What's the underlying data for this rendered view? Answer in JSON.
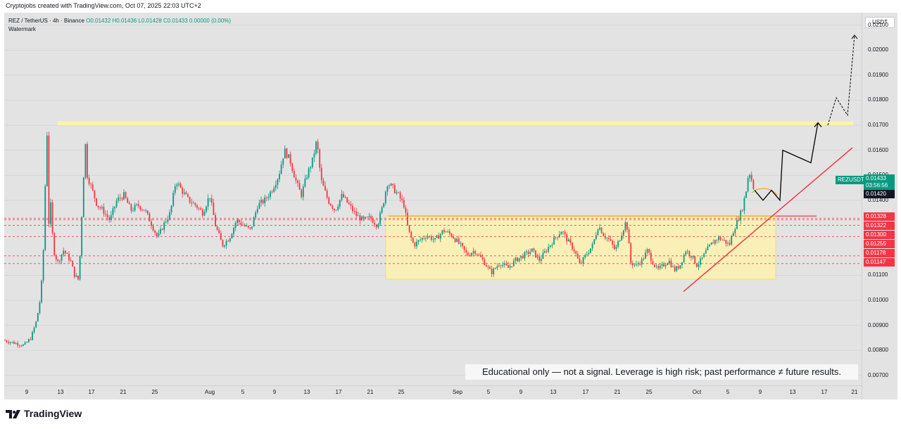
{
  "header": {
    "credit": "Cryptojobs created with TradingView.com, Oct 07, 2025 22:03 UTC+2"
  },
  "legend": {
    "symbol": "REZ / TetherUS · 4h · Binance",
    "ohlc": "O0.01432 H0.01436 L0.01428 C0.01433 0.00000 (0.00%)",
    "watermark": "Watermark"
  },
  "currency_button": "USDT",
  "price_axis_ticks": [
    "0.02100",
    "0.02000",
    "0.01900",
    "0.01800",
    "0.01700",
    "0.01600",
    "0.01500",
    "0.01400",
    "0.01100",
    "0.01000",
    "0.00900",
    "0.00800",
    "0.00700"
  ],
  "price_tags": {
    "symbol": "REZUSDT",
    "last_price": "0.01433",
    "countdown": "03:56:56",
    "level_1420": "0.01420",
    "levels_red": [
      "0.01328",
      "0.01322",
      "0.01300",
      "0.01255",
      "0.01178",
      "0.01147"
    ]
  },
  "time_axis": [
    "9",
    "13",
    "17",
    "21",
    "25",
    "Aug",
    "5",
    "9",
    "13",
    "17",
    "21",
    "25",
    "Sep",
    "5",
    "9",
    "13",
    "17",
    "21",
    "25",
    "Oct",
    "5",
    "9",
    "13",
    "17",
    "21"
  ],
  "disclaimer": "Educational only — not a signal. Leverage is high risk; past performance ≠ future results.",
  "footer": {
    "brand": "TradingView"
  },
  "colors": {
    "up": "#089981",
    "down": "#f23645",
    "resistance_zone": "#fff59d",
    "range_box": "#fff3b0",
    "trendline": "#f23645",
    "range_top_line": "#ff9800",
    "projection": "#000000"
  },
  "chart_data": {
    "type": "candlestick",
    "symbol": "REZ / TetherUS",
    "timeframe": "4h",
    "exchange": "Binance",
    "ylim": [
      0.0066,
      0.0215
    ],
    "y_ticks": [
      0.021,
      0.02,
      0.019,
      0.018,
      0.017,
      0.016,
      0.015,
      0.014,
      0.011,
      0.01,
      0.009,
      0.008,
      0.007
    ],
    "x_labels": [
      "9",
      "13",
      "17",
      "21",
      "25",
      "Aug",
      "5",
      "9",
      "13",
      "17",
      "21",
      "25",
      "Sep",
      "5",
      "9",
      "13",
      "17",
      "21",
      "25",
      "Oct",
      "5",
      "9",
      "13",
      "17",
      "21"
    ],
    "price_path": [
      [
        0,
        0.0084
      ],
      [
        14,
        0.0083
      ],
      [
        28,
        0.0082
      ],
      [
        38,
        0.0085
      ],
      [
        46,
        0.0092
      ],
      [
        52,
        0.0102
      ],
      [
        56,
        0.0122
      ],
      [
        58,
        0.0142
      ],
      [
        60,
        0.018
      ],
      [
        63,
        0.013
      ],
      [
        66,
        0.0138
      ],
      [
        70,
        0.012
      ],
      [
        76,
        0.0115
      ],
      [
        84,
        0.012
      ],
      [
        94,
        0.0116
      ],
      [
        100,
        0.011
      ],
      [
        106,
        0.0108
      ],
      [
        112,
        0.0145
      ],
      [
        115,
        0.0164
      ],
      [
        118,
        0.015
      ],
      [
        124,
        0.0145
      ],
      [
        132,
        0.0138
      ],
      [
        140,
        0.0136
      ],
      [
        150,
        0.0132
      ],
      [
        160,
        0.014
      ],
      [
        170,
        0.0142
      ],
      [
        180,
        0.0136
      ],
      [
        190,
        0.0138
      ],
      [
        200,
        0.0136
      ],
      [
        210,
        0.013
      ],
      [
        218,
        0.0125
      ],
      [
        226,
        0.013
      ],
      [
        236,
        0.0135
      ],
      [
        244,
        0.0148
      ],
      [
        252,
        0.0144
      ],
      [
        262,
        0.014
      ],
      [
        272,
        0.0138
      ],
      [
        282,
        0.0135
      ],
      [
        292,
        0.0142
      ],
      [
        300,
        0.013
      ],
      [
        310,
        0.0122
      ],
      [
        320,
        0.0125
      ],
      [
        330,
        0.0132
      ],
      [
        340,
        0.013
      ],
      [
        350,
        0.0128
      ],
      [
        360,
        0.0138
      ],
      [
        370,
        0.014
      ],
      [
        380,
        0.0144
      ],
      [
        390,
        0.015
      ],
      [
        398,
        0.016
      ],
      [
        406,
        0.0156
      ],
      [
        414,
        0.0148
      ],
      [
        422,
        0.0142
      ],
      [
        430,
        0.015
      ],
      [
        438,
        0.0156
      ],
      [
        444,
        0.0164
      ],
      [
        450,
        0.0148
      ],
      [
        460,
        0.014
      ],
      [
        470,
        0.0136
      ],
      [
        480,
        0.0142
      ],
      [
        490,
        0.0138
      ],
      [
        500,
        0.0134
      ],
      [
        510,
        0.0132
      ],
      [
        520,
        0.0133
      ],
      [
        530,
        0.013
      ],
      [
        538,
        0.0138
      ],
      [
        544,
        0.0147
      ],
      [
        552,
        0.0145
      ],
      [
        560,
        0.0142
      ],
      [
        568,
        0.0138
      ],
      [
        574,
        0.0128
      ],
      [
        582,
        0.0122
      ],
      [
        590,
        0.0124
      ],
      [
        600,
        0.0126
      ],
      [
        612,
        0.0124
      ],
      [
        624,
        0.0128
      ],
      [
        636,
        0.0126
      ],
      [
        648,
        0.0122
      ],
      [
        658,
        0.0118
      ],
      [
        668,
        0.012
      ],
      [
        680,
        0.0116
      ],
      [
        692,
        0.0111
      ],
      [
        704,
        0.0115
      ],
      [
        716,
        0.0113
      ],
      [
        726,
        0.0116
      ],
      [
        738,
        0.0118
      ],
      [
        750,
        0.012
      ],
      [
        760,
        0.0116
      ],
      [
        770,
        0.012
      ],
      [
        780,
        0.0124
      ],
      [
        792,
        0.0128
      ],
      [
        800,
        0.0124
      ],
      [
        810,
        0.012
      ],
      [
        818,
        0.0114
      ],
      [
        826,
        0.0118
      ],
      [
        836,
        0.0122
      ],
      [
        844,
        0.013
      ],
      [
        852,
        0.0126
      ],
      [
        860,
        0.0124
      ],
      [
        868,
        0.012
      ],
      [
        876,
        0.0126
      ],
      [
        884,
        0.0132
      ],
      [
        890,
        0.0115
      ],
      [
        898,
        0.0114
      ],
      [
        906,
        0.0116
      ],
      [
        914,
        0.012
      ],
      [
        920,
        0.0116
      ],
      [
        928,
        0.0112
      ],
      [
        936,
        0.0114
      ],
      [
        944,
        0.0116
      ],
      [
        952,
        0.0112
      ],
      [
        960,
        0.0114
      ],
      [
        968,
        0.012
      ],
      [
        976,
        0.0118
      ],
      [
        984,
        0.0114
      ],
      [
        990,
        0.0116
      ],
      [
        998,
        0.012
      ],
      [
        1006,
        0.0123
      ],
      [
        1014,
        0.0125
      ],
      [
        1022,
        0.0124
      ],
      [
        1030,
        0.0122
      ],
      [
        1036,
        0.0128
      ],
      [
        1042,
        0.0132
      ],
      [
        1048,
        0.0136
      ],
      [
        1054,
        0.0144
      ],
      [
        1058,
        0.0152
      ],
      [
        1062,
        0.0148
      ],
      [
        1066,
        0.01433
      ]
    ],
    "annotations": {
      "resistance_zone": [
        0.017,
        0.01715
      ],
      "range_box": [
        0.01085,
        0.01337
      ],
      "range_top_line": 0.01337,
      "dashed_levels": [
        0.01328,
        0.01322,
        0.013,
        0.01255,
        0.01178,
        0.01147
      ],
      "trendline": [
        [
          965,
          0.01035
        ],
        [
          1205,
          0.0161
        ]
      ],
      "projection_solid": [
        [
          1066,
          0.0144
        ],
        [
          1078,
          0.014
        ],
        [
          1090,
          0.0144
        ],
        [
          1102,
          0.014
        ],
        [
          1106,
          0.016
        ],
        [
          1146,
          0.0155
        ],
        [
          1156,
          0.0171
        ]
      ],
      "projection_dashed": [
        [
          1170,
          0.017
        ],
        [
          1182,
          0.0181
        ],
        [
          1198,
          0.0174
        ],
        [
          1208,
          0.0206
        ]
      ]
    }
  }
}
